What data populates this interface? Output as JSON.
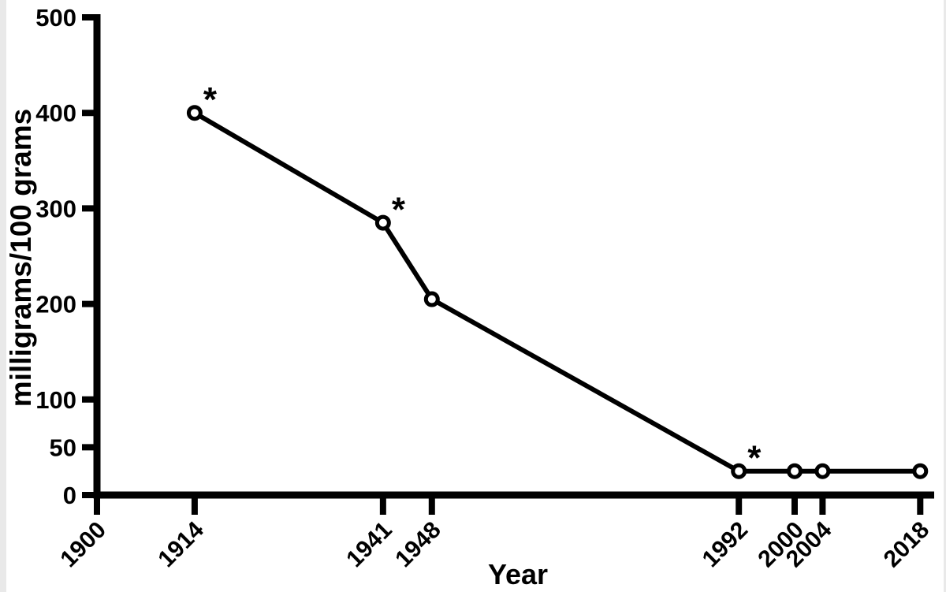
{
  "figure": {
    "background": "#ffffff",
    "edge_shade_color": "#e9e9e9"
  },
  "chart_data": {
    "type": "line",
    "title": "",
    "xlabel": "Year",
    "ylabel": "milligrams/100 grams",
    "x": [
      1914,
      1941,
      1948,
      1992,
      2000,
      2004,
      2018
    ],
    "values": [
      400,
      285,
      205,
      25,
      25,
      25,
      25
    ],
    "starred_points": [
      1914,
      1941,
      1992
    ],
    "star_symbol": "*",
    "x_ticks": [
      1900,
      1914,
      1941,
      1948,
      1992,
      2000,
      2004,
      2018
    ],
    "y_ticks": [
      0,
      50,
      100,
      200,
      300,
      400,
      500
    ],
    "xlim": [
      1900,
      2020
    ],
    "ylim": [
      0,
      500
    ],
    "grid": false,
    "legend": "none",
    "marker": "open-circle",
    "line_color": "#000000",
    "axis_color": "#000000",
    "marker_fill": "#ffffff"
  }
}
